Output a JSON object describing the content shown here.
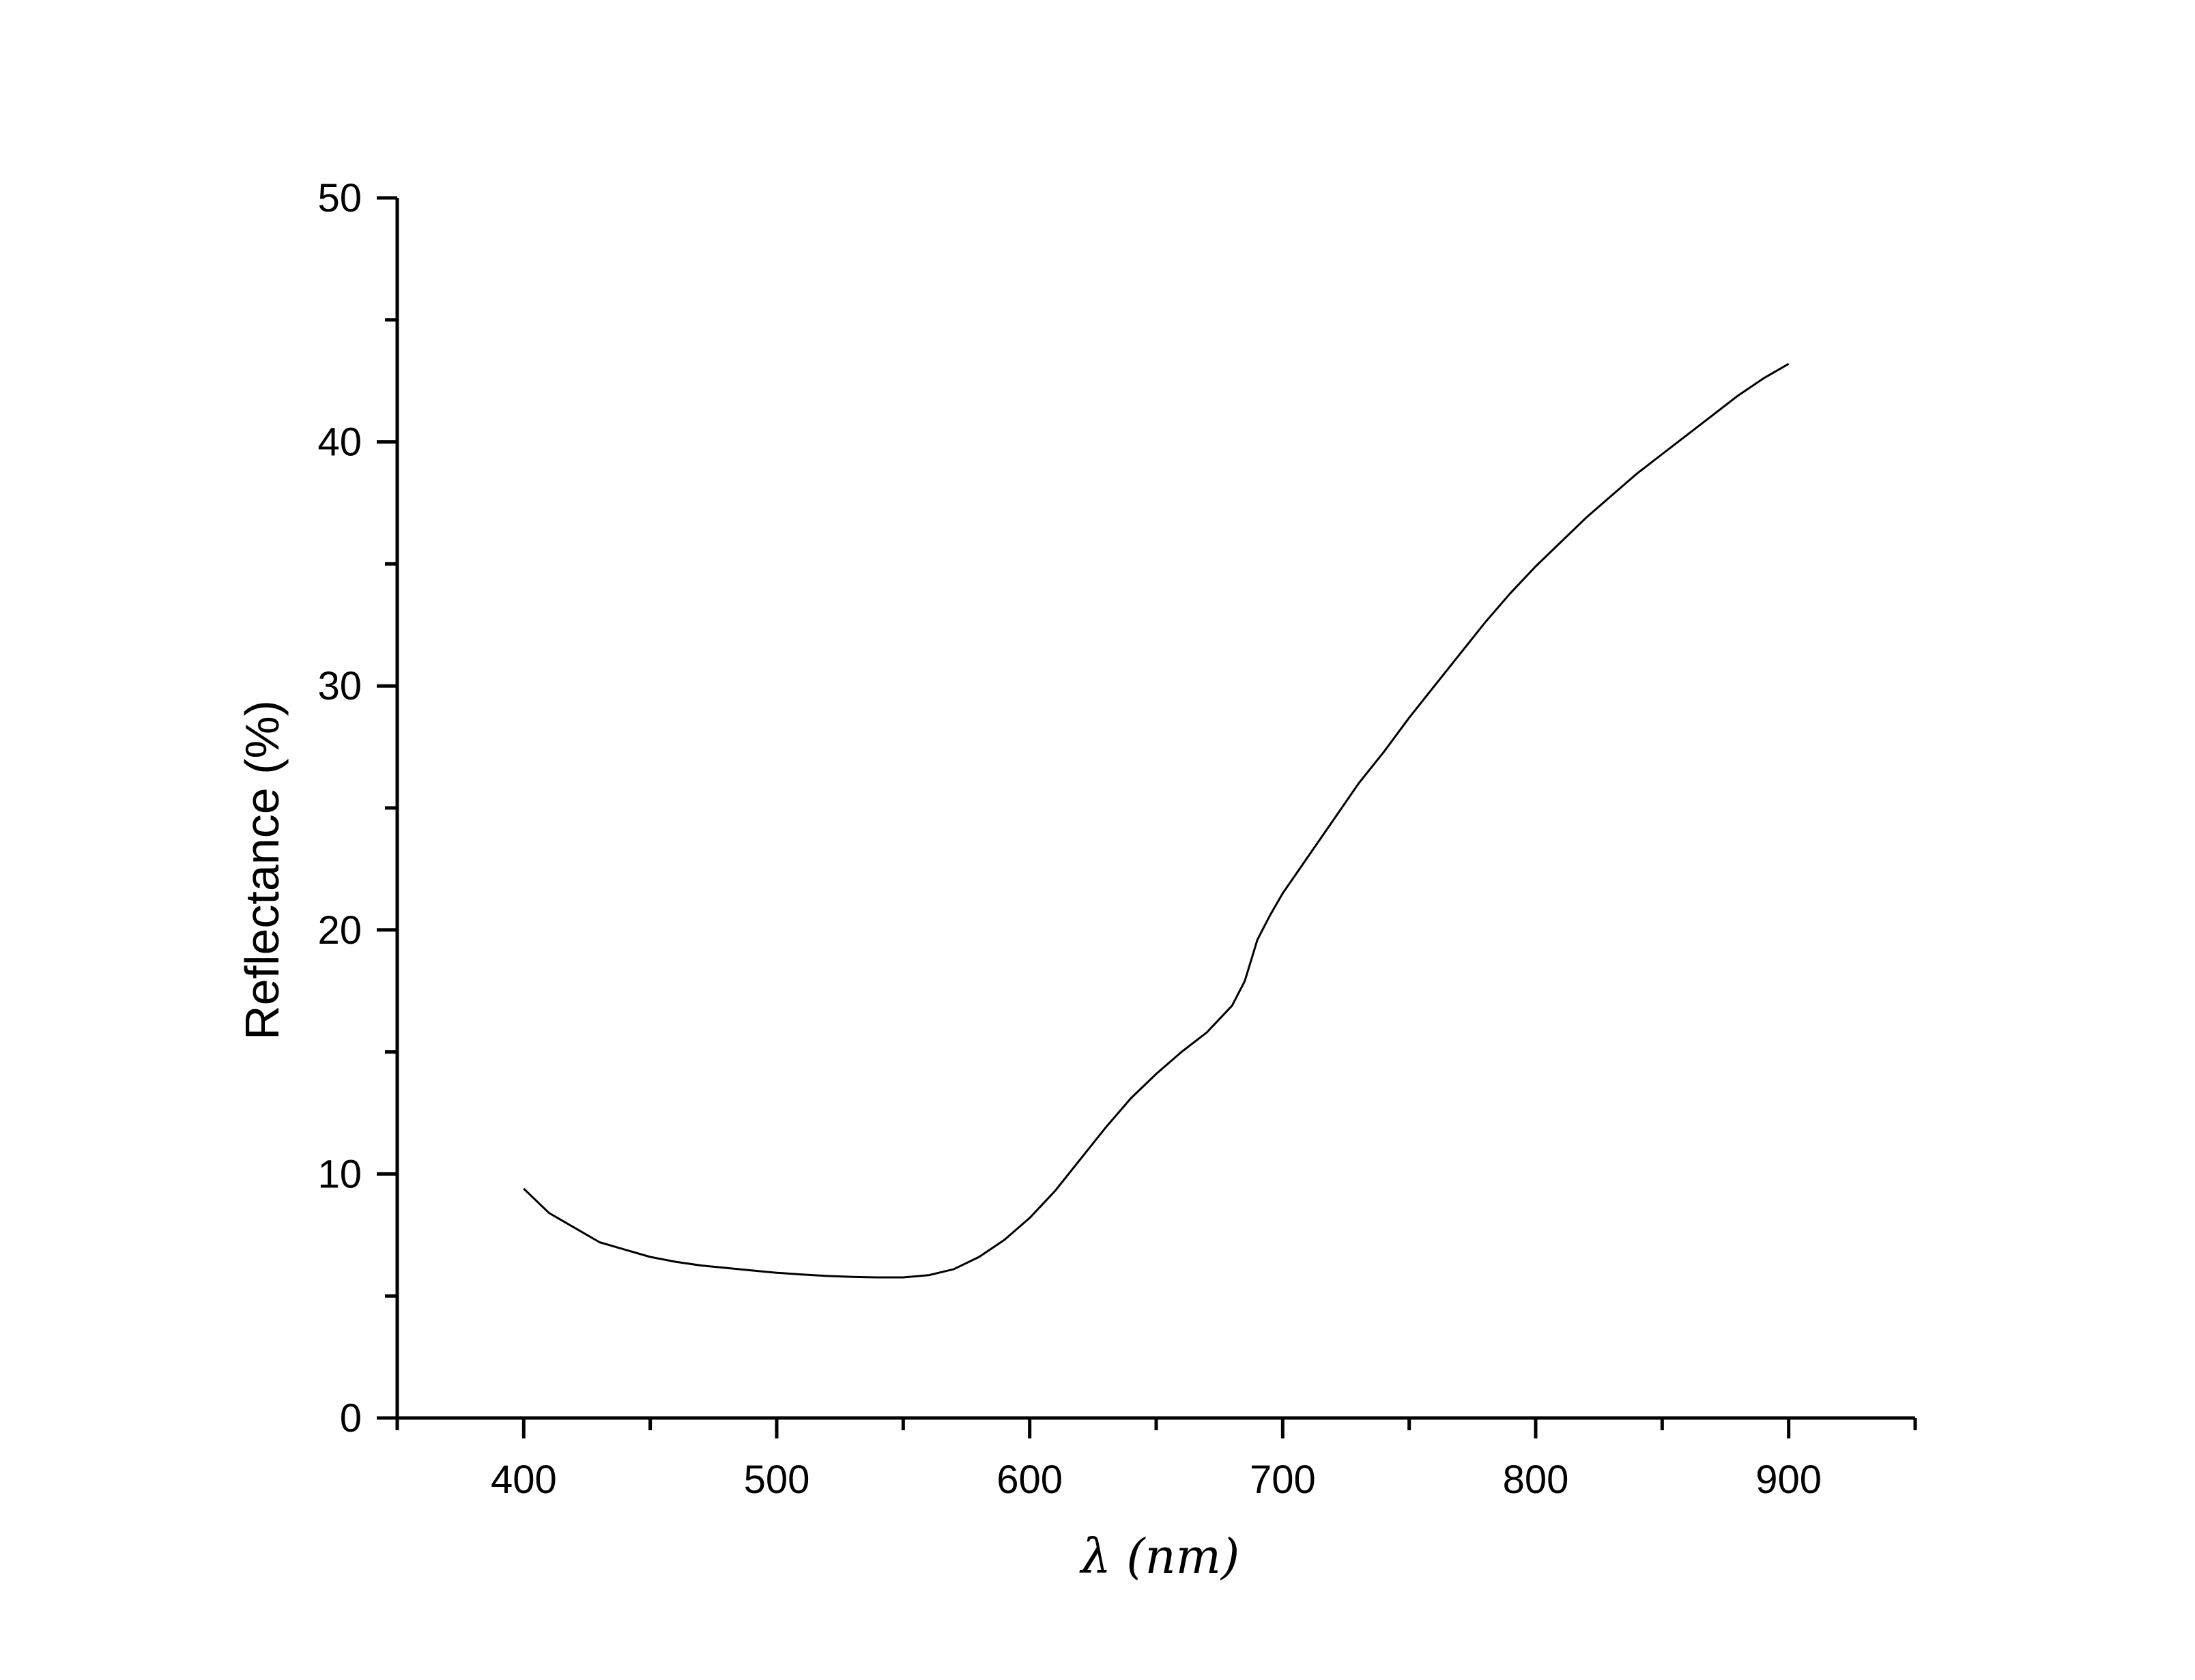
{
  "chart_data": {
    "type": "line",
    "title": "",
    "xlabel": "λ  (nm)",
    "ylabel": "Reflectance (%)",
    "xlim": [
      350,
      950
    ],
    "ylim": [
      0,
      50
    ],
    "x_ticks": [
      400,
      500,
      600,
      700,
      800,
      900
    ],
    "y_ticks": [
      0,
      10,
      20,
      30,
      40,
      50
    ],
    "grid": false,
    "legend": "none",
    "line_color": "#000000",
    "series": [
      {
        "x": [
          400,
          410,
          420,
          430,
          440,
          450,
          460,
          470,
          480,
          490,
          500,
          510,
          520,
          530,
          540,
          550,
          560,
          570,
          580,
          590,
          600,
          610,
          620,
          630,
          640,
          650,
          660,
          670,
          680,
          685,
          690,
          695,
          700,
          710,
          720,
          730,
          740,
          750,
          760,
          770,
          780,
          790,
          800,
          810,
          820,
          830,
          840,
          850,
          860,
          870,
          880,
          890,
          900
        ],
        "y": [
          9.4,
          8.4,
          7.8,
          7.2,
          6.9,
          6.6,
          6.4,
          6.25,
          6.15,
          6.05,
          5.95,
          5.88,
          5.82,
          5.78,
          5.76,
          5.76,
          5.85,
          6.1,
          6.6,
          7.3,
          8.2,
          9.3,
          10.6,
          11.9,
          13.1,
          14.1,
          15.0,
          15.8,
          16.9,
          17.9,
          19.6,
          20.6,
          21.5,
          23.0,
          24.5,
          26.0,
          27.3,
          28.7,
          30.0,
          31.3,
          32.6,
          33.8,
          34.9,
          35.9,
          36.9,
          37.8,
          38.7,
          39.5,
          40.3,
          41.1,
          41.9,
          42.6,
          43.2
        ]
      }
    ]
  }
}
